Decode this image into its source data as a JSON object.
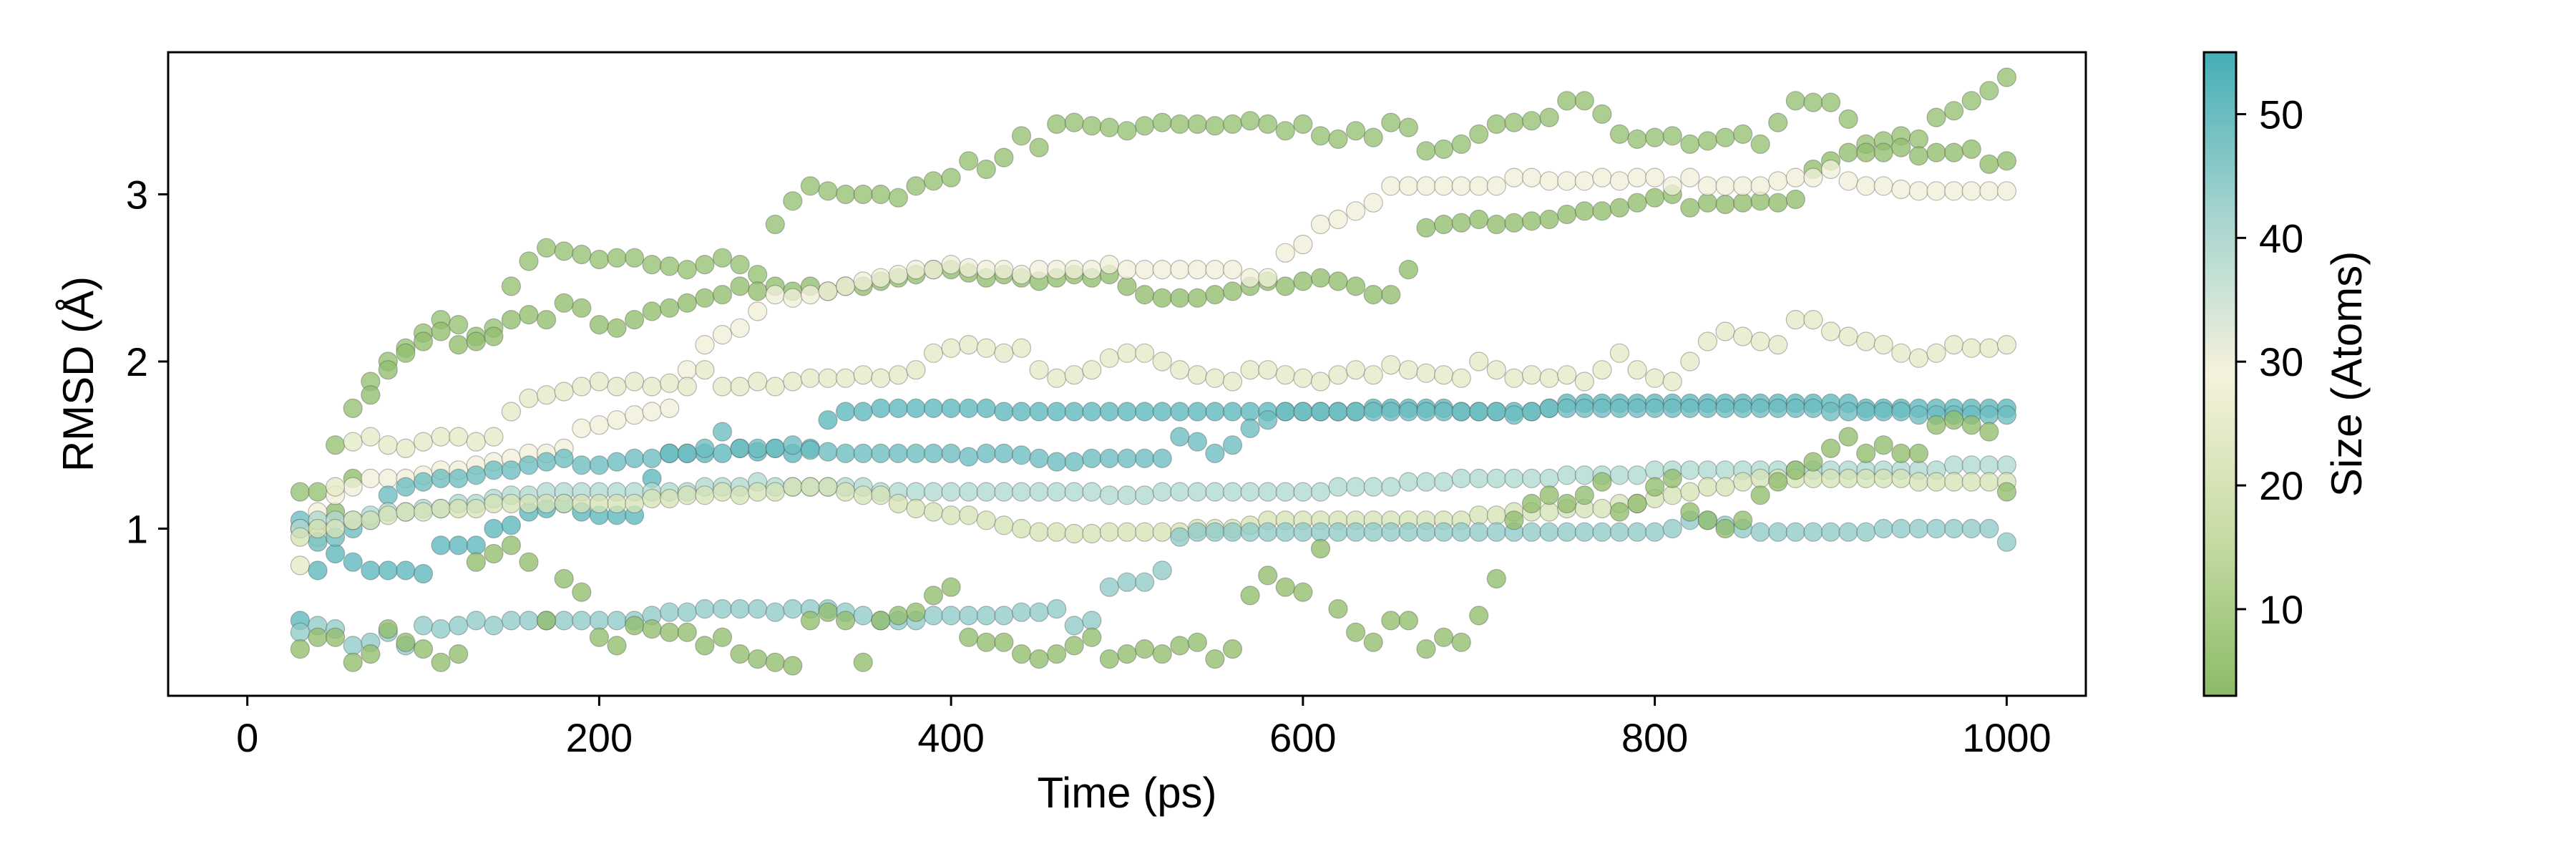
{
  "chart_data": {
    "type": "scatter",
    "title": "",
    "xlabel": "Time (ps)",
    "ylabel": "RMSD (Å)",
    "xlim": [
      -45,
      1045
    ],
    "ylim": [
      0.0,
      3.85
    ],
    "xticks": [
      0,
      200,
      400,
      600,
      800,
      1000
    ],
    "yticks": [
      1,
      2,
      3
    ],
    "grid": false,
    "colorbar": {
      "label": "Size (Atoms)",
      "range": [
        3,
        55
      ],
      "ticks": [
        10,
        20,
        30,
        40,
        50
      ],
      "colors": [
        "#8cbb68",
        "#c7dca5",
        "#f5f2dc",
        "#a4d4cf",
        "#45aeb6"
      ]
    },
    "x": [
      30,
      40,
      50,
      60,
      70,
      80,
      90,
      100,
      110,
      120,
      130,
      140,
      150,
      160,
      170,
      180,
      190,
      200,
      210,
      220,
      230,
      240,
      250,
      260,
      270,
      280,
      290,
      300,
      310,
      320,
      330,
      340,
      350,
      360,
      370,
      380,
      390,
      400,
      410,
      420,
      430,
      440,
      450,
      460,
      470,
      480,
      490,
      500,
      510,
      520,
      530,
      540,
      550,
      560,
      570,
      580,
      590,
      600,
      610,
      620,
      630,
      640,
      650,
      660,
      670,
      680,
      690,
      700,
      710,
      720,
      730,
      740,
      750,
      760,
      770,
      780,
      790,
      800,
      810,
      820,
      830,
      840,
      850,
      860,
      870,
      880,
      890,
      900,
      910,
      920,
      930,
      940,
      950,
      960,
      970,
      980,
      990,
      1000
    ],
    "series": [
      {
        "size": 5,
        "y": [
          1.22,
          1.22,
          1.5,
          1.72,
          1.88,
          2.0,
          2.08,
          2.17,
          2.25,
          2.22,
          2.15,
          2.2,
          2.45,
          2.6,
          2.68,
          2.66,
          2.64,
          2.61,
          2.62,
          2.62,
          2.58,
          2.57,
          2.55,
          2.58,
          2.62,
          2.58,
          2.52,
          2.82,
          2.96,
          3.05,
          3.02,
          3.0,
          3.0,
          3.0,
          2.98,
          3.05,
          3.08,
          3.1,
          3.2,
          3.15,
          3.22,
          3.35,
          3.28,
          3.42,
          3.43,
          3.41,
          3.4,
          3.38,
          3.41,
          3.43,
          3.42,
          3.42,
          3.41,
          3.42,
          3.44,
          3.42,
          3.38,
          3.42,
          3.35,
          3.33,
          3.38,
          3.34,
          3.43,
          3.4,
          3.26,
          3.27,
          3.3,
          3.36,
          3.42,
          3.43,
          3.44,
          3.46,
          3.56,
          3.56,
          3.48,
          3.36,
          3.33,
          3.34,
          3.35,
          3.3,
          3.32,
          3.34,
          3.36,
          3.3,
          3.43,
          3.56,
          3.55,
          3.55,
          3.45,
          3.3,
          3.32,
          3.35,
          3.33,
          3.46,
          3.5,
          3.56,
          3.62,
          3.7
        ]
      },
      {
        "size": 4,
        "y": [
          1.0,
          1.0,
          1.1,
          1.3,
          1.8,
          1.95,
          2.05,
          2.12,
          2.18,
          2.1,
          2.12,
          2.15,
          2.25,
          2.28,
          2.25,
          2.35,
          2.32,
          2.22,
          2.2,
          2.25,
          2.3,
          2.32,
          2.35,
          2.38,
          2.4,
          2.45,
          2.42,
          2.45,
          2.42,
          2.45,
          2.42,
          2.45,
          2.45,
          2.48,
          2.5,
          2.52,
          2.55,
          2.55,
          2.53,
          2.5,
          2.52,
          2.5,
          2.48,
          2.5,
          2.52,
          2.5,
          2.52,
          2.45,
          2.4,
          2.38,
          2.38,
          2.38,
          2.4,
          2.42,
          2.45,
          2.48,
          2.45,
          2.48,
          2.5,
          2.48,
          2.45,
          2.4,
          2.4,
          2.55,
          2.8,
          2.82,
          2.83,
          2.85,
          2.82,
          2.83,
          2.84,
          2.85,
          2.88,
          2.9,
          2.9,
          2.92,
          2.95,
          2.98,
          3.0,
          2.92,
          2.95,
          2.94,
          2.95,
          2.96,
          2.95,
          2.97,
          3.15,
          3.2,
          3.25,
          3.25,
          3.25,
          3.28,
          3.23,
          3.25,
          3.25,
          3.27,
          3.18,
          3.2
        ]
      },
      {
        "size": 28,
        "y": [
          1.0,
          1.1,
          1.2,
          1.25,
          1.3,
          1.3,
          1.3,
          1.32,
          1.35,
          1.35,
          1.38,
          1.4,
          1.42,
          1.45,
          1.45,
          1.48,
          1.6,
          1.62,
          1.65,
          1.68,
          1.7,
          1.72,
          1.95,
          2.1,
          2.16,
          2.2,
          2.3,
          2.4,
          2.38,
          2.4,
          2.42,
          2.45,
          2.48,
          2.5,
          2.52,
          2.55,
          2.55,
          2.58,
          2.56,
          2.55,
          2.55,
          2.52,
          2.55,
          2.55,
          2.55,
          2.55,
          2.58,
          2.55,
          2.55,
          2.55,
          2.55,
          2.55,
          2.55,
          2.55,
          2.5,
          2.5,
          2.65,
          2.7,
          2.82,
          2.85,
          2.9,
          2.95,
          3.05,
          3.05,
          3.05,
          3.05,
          3.05,
          3.05,
          3.05,
          3.1,
          3.1,
          3.08,
          3.08,
          3.08,
          3.1,
          3.08,
          3.1,
          3.1,
          3.05,
          3.1,
          3.05,
          3.05,
          3.05,
          3.05,
          3.08,
          3.1,
          3.1,
          3.15,
          3.08,
          3.05,
          3.05,
          3.03,
          3.02,
          3.02,
          3.02,
          3.02,
          3.02,
          3.02
        ]
      },
      {
        "size": 24,
        "y": [
          0.78,
          0.95,
          1.25,
          1.52,
          1.55,
          1.5,
          1.48,
          1.52,
          1.55,
          1.55,
          1.52,
          1.55,
          1.7,
          1.78,
          1.8,
          1.82,
          1.85,
          1.88,
          1.85,
          1.88,
          1.85,
          1.87,
          1.85,
          1.95,
          1.85,
          1.85,
          1.88,
          1.85,
          1.88,
          1.9,
          1.9,
          1.9,
          1.92,
          1.9,
          1.92,
          1.95,
          2.05,
          2.08,
          2.1,
          2.08,
          2.05,
          2.08,
          1.95,
          1.9,
          1.92,
          1.95,
          2.02,
          2.05,
          2.05,
          2.0,
          1.95,
          1.92,
          1.9,
          1.88,
          1.95,
          1.95,
          1.92,
          1.9,
          1.88,
          1.92,
          1.95,
          1.92,
          1.98,
          1.95,
          1.93,
          1.92,
          1.9,
          2.0,
          1.95,
          1.9,
          1.92,
          1.9,
          1.92,
          1.88,
          1.95,
          2.05,
          1.95,
          1.9,
          1.88,
          2.0,
          2.12,
          2.18,
          2.15,
          2.12,
          2.1,
          2.25,
          2.25,
          2.18,
          2.15,
          2.12,
          2.1,
          2.05,
          2.02,
          2.05,
          2.1,
          2.08,
          2.08,
          2.1
        ]
      },
      {
        "size": 52,
        "y": [
          0.45,
          0.75,
          0.85,
          0.8,
          0.75,
          0.75,
          0.75,
          0.73,
          0.9,
          0.9,
          0.9,
          1.0,
          1.02,
          1.1,
          1.12,
          1.15,
          1.1,
          1.08,
          1.08,
          1.08,
          1.3,
          1.45,
          1.45,
          1.45,
          1.45,
          1.48,
          1.46,
          1.48,
          1.45,
          1.48,
          1.65,
          1.7,
          1.7,
          1.72,
          1.72,
          1.72,
          1.72,
          1.72,
          1.72,
          1.72,
          1.7,
          1.7,
          1.7,
          1.7,
          1.7,
          1.7,
          1.7,
          1.7,
          1.7,
          1.7,
          1.7,
          1.7,
          1.7,
          1.7,
          1.7,
          1.7,
          1.7,
          1.7,
          1.7,
          1.7,
          1.7,
          1.72,
          1.72,
          1.72,
          1.72,
          1.72,
          1.7,
          1.7,
          1.7,
          1.7,
          1.7,
          1.72,
          1.75,
          1.75,
          1.75,
          1.75,
          1.75,
          1.75,
          1.75,
          1.75,
          1.75,
          1.75,
          1.75,
          1.75,
          1.75,
          1.75,
          1.75,
          1.75,
          1.75,
          1.72,
          1.72,
          1.72,
          1.72,
          1.72,
          1.72,
          1.72,
          1.72,
          1.72
        ]
      },
      {
        "size": 50,
        "y": [
          1.05,
          0.92,
          0.95,
          1.0,
          1.05,
          1.2,
          1.25,
          1.28,
          1.3,
          1.3,
          1.32,
          1.35,
          1.35,
          1.38,
          1.4,
          1.42,
          1.38,
          1.38,
          1.4,
          1.42,
          1.42,
          1.45,
          1.45,
          1.48,
          1.58,
          1.48,
          1.48,
          1.48,
          1.5,
          1.47,
          1.46,
          1.45,
          1.45,
          1.45,
          1.45,
          1.45,
          1.45,
          1.45,
          1.43,
          1.45,
          1.45,
          1.44,
          1.42,
          1.4,
          1.4,
          1.42,
          1.42,
          1.42,
          1.42,
          1.42,
          1.55,
          1.52,
          1.45,
          1.5,
          1.6,
          1.65,
          1.7,
          1.7,
          1.7,
          1.7,
          1.7,
          1.7,
          1.7,
          1.7,
          1.7,
          1.7,
          1.7,
          1.7,
          1.7,
          1.68,
          1.7,
          1.72,
          1.72,
          1.72,
          1.72,
          1.72,
          1.72,
          1.72,
          1.72,
          1.72,
          1.72,
          1.72,
          1.72,
          1.72,
          1.72,
          1.72,
          1.72,
          1.7,
          1.7,
          1.7,
          1.7,
          1.7,
          1.68,
          1.68,
          1.68,
          1.68,
          1.68,
          1.68
        ]
      },
      {
        "size": 40,
        "y": [
          1.0,
          1.05,
          1.05,
          1.05,
          1.08,
          1.1,
          1.1,
          1.12,
          1.12,
          1.15,
          1.15,
          1.18,
          1.2,
          1.2,
          1.22,
          1.22,
          1.22,
          1.22,
          1.22,
          1.22,
          1.22,
          1.22,
          1.22,
          1.25,
          1.25,
          1.25,
          1.28,
          1.25,
          1.25,
          1.25,
          1.25,
          1.25,
          1.25,
          1.22,
          1.22,
          1.22,
          1.22,
          1.22,
          1.22,
          1.22,
          1.22,
          1.22,
          1.22,
          1.22,
          1.22,
          1.22,
          1.2,
          1.2,
          1.2,
          1.22,
          1.22,
          1.22,
          1.22,
          1.22,
          1.22,
          1.22,
          1.22,
          1.22,
          1.22,
          1.25,
          1.25,
          1.25,
          1.25,
          1.28,
          1.28,
          1.28,
          1.3,
          1.3,
          1.3,
          1.3,
          1.3,
          1.3,
          1.32,
          1.32,
          1.32,
          1.32,
          1.32,
          1.35,
          1.35,
          1.35,
          1.35,
          1.35,
          1.35,
          1.35,
          1.35,
          1.35,
          1.35,
          1.35,
          1.35,
          1.35,
          1.35,
          1.35,
          1.35,
          1.35,
          1.38,
          1.38,
          1.38,
          1.38
        ]
      },
      {
        "size": 20,
        "y": [
          0.95,
          1.0,
          1.0,
          1.05,
          1.05,
          1.08,
          1.1,
          1.1,
          1.12,
          1.12,
          1.12,
          1.15,
          1.15,
          1.15,
          1.15,
          1.15,
          1.15,
          1.15,
          1.15,
          1.15,
          1.18,
          1.18,
          1.2,
          1.2,
          1.22,
          1.2,
          1.22,
          1.22,
          1.25,
          1.25,
          1.25,
          1.22,
          1.2,
          1.2,
          1.15,
          1.12,
          1.1,
          1.08,
          1.08,
          1.05,
          1.02,
          1.0,
          0.98,
          0.98,
          0.97,
          0.97,
          0.98,
          0.98,
          0.98,
          0.98,
          0.98,
          1.0,
          1.0,
          1.0,
          1.02,
          1.05,
          1.05,
          1.05,
          1.05,
          1.05,
          1.05,
          1.05,
          1.05,
          1.05,
          1.05,
          1.05,
          1.05,
          1.08,
          1.08,
          1.1,
          1.1,
          1.1,
          1.12,
          1.12,
          1.12,
          1.15,
          1.15,
          1.18,
          1.2,
          1.22,
          1.25,
          1.25,
          1.28,
          1.3,
          1.3,
          1.3,
          1.3,
          1.3,
          1.3,
          1.3,
          1.3,
          1.3,
          1.28,
          1.28,
          1.28,
          1.28,
          1.28,
          1.28
        ]
      },
      {
        "size": 45,
        "y": [
          0.38,
          0.42,
          0.4,
          0.3,
          0.32,
          0.38,
          0.3,
          0.42,
          0.4,
          0.42,
          0.45,
          0.42,
          0.45,
          0.45,
          0.45,
          0.45,
          0.45,
          0.45,
          0.45,
          0.45,
          0.48,
          0.5,
          0.5,
          0.52,
          0.52,
          0.52,
          0.52,
          0.5,
          0.52,
          0.52,
          0.52,
          0.5,
          0.48,
          0.45,
          0.45,
          0.45,
          0.48,
          0.48,
          0.48,
          0.48,
          0.48,
          0.5,
          0.5,
          0.52,
          0.42,
          0.45,
          0.65,
          0.68,
          0.68,
          0.75,
          0.95,
          0.98,
          0.98,
          0.98,
          0.98,
          0.98,
          0.98,
          0.98,
          0.98,
          0.98,
          0.98,
          0.98,
          0.98,
          0.98,
          0.98,
          0.98,
          0.98,
          0.98,
          0.98,
          0.98,
          0.98,
          0.98,
          0.98,
          0.98,
          0.98,
          0.98,
          0.98,
          0.98,
          1.0,
          1.05,
          1.05,
          1.02,
          1.0,
          0.98,
          0.98,
          0.98,
          0.98,
          0.98,
          0.98,
          0.98,
          1.0,
          1.0,
          1.0,
          1.0,
          1.0,
          1.0,
          1.0,
          0.92
        ]
      },
      {
        "size": 4,
        "y": [
          0.28,
          0.35,
          0.35,
          0.2,
          0.25,
          0.4,
          0.32,
          0.28,
          0.2,
          0.25,
          0.8,
          0.85,
          0.9,
          0.8,
          0.45,
          0.7,
          0.62,
          0.35,
          0.3,
          0.42,
          0.4,
          0.38,
          0.38,
          0.3,
          0.35,
          0.25,
          0.22,
          0.2,
          0.18,
          0.45,
          0.5,
          0.45,
          0.2,
          0.45,
          0.48,
          0.5,
          0.6,
          0.65,
          0.35,
          0.32,
          0.32,
          0.25,
          0.22,
          0.25,
          0.3,
          0.35,
          0.22,
          0.25,
          0.28,
          0.25,
          0.3,
          0.32,
          0.22,
          0.28,
          0.6,
          0.72,
          0.65,
          0.62,
          0.88,
          0.52,
          0.38,
          0.32,
          0.45,
          0.45,
          0.28,
          0.35,
          0.32,
          0.48,
          0.7,
          1.05,
          1.15,
          1.2,
          1.15,
          1.2,
          1.28,
          1.1,
          1.15,
          1.25,
          1.3,
          1.1,
          1.05,
          1.0,
          1.05,
          1.2,
          1.28,
          1.35,
          1.4,
          1.48,
          1.55,
          1.45,
          1.5,
          1.45,
          1.45,
          1.62,
          1.65,
          1.62,
          1.58,
          1.22
        ]
      }
    ]
  }
}
